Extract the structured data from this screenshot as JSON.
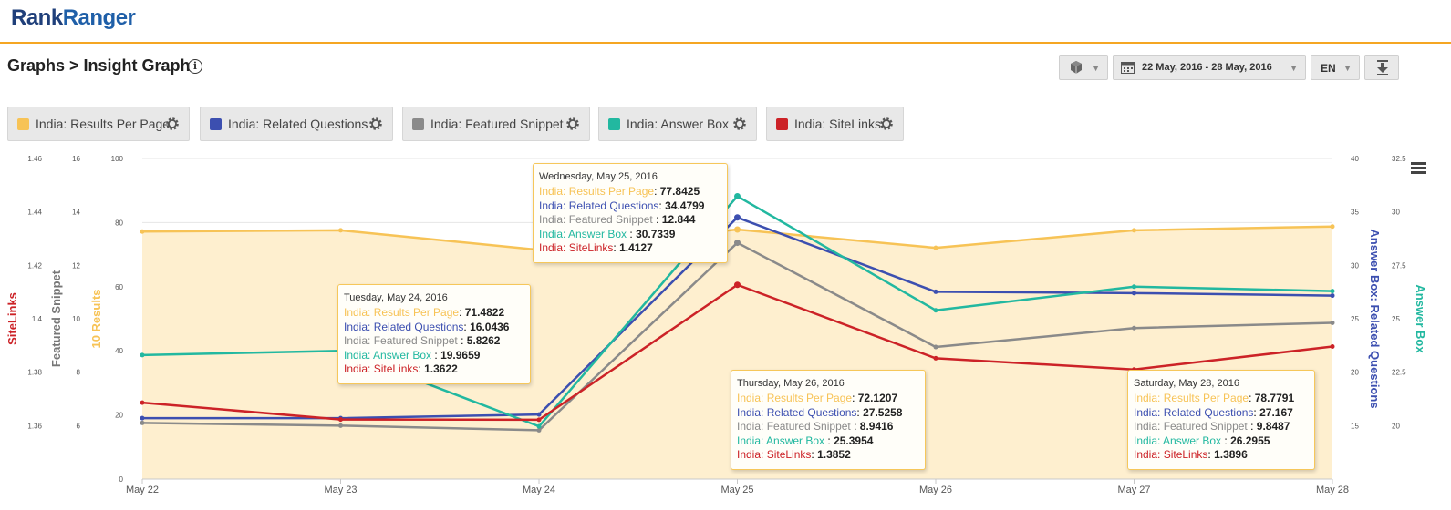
{
  "app": {
    "logo_part1": "Rank",
    "logo_part2": "Ranger"
  },
  "header": {
    "title": "Graphs > Insight Graph",
    "info_icon": "info-icon"
  },
  "toolbar": {
    "view_icon": "cube-icon",
    "date_range": "22 May, 2016 - 28 May, 2016",
    "language": "EN",
    "download_icon": "download-icon"
  },
  "legend": [
    {
      "label": "India: Results Per Page",
      "color": "#f7c356"
    },
    {
      "label": "India: Related Questions",
      "color": "#3c4fb0"
    },
    {
      "label": "India: Featured Snippet",
      "color": "#8a8a8a"
    },
    {
      "label": "India: Answer Box",
      "color": "#22b8a0"
    },
    {
      "label": "India: SiteLinks",
      "color": "#cc2227"
    }
  ],
  "chart_data": {
    "type": "line",
    "categories": [
      "May 22",
      "May 23",
      "May 24",
      "May 25",
      "May 26",
      "May 27",
      "May 28"
    ],
    "series": [
      {
        "name": "India: Results Per Page",
        "color": "#f7c356",
        "axis": "10 Results",
        "area": true,
        "values": [
          77.2,
          77.6,
          71.4822,
          77.8425,
          72.1207,
          77.6,
          78.7791
        ]
      },
      {
        "name": "India: Related Questions",
        "color": "#3c4fb0",
        "axis": "Answer Box: Related Questions",
        "values": [
          15.7,
          15.7,
          16.0436,
          34.4799,
          27.5258,
          27.4,
          27.167
        ]
      },
      {
        "name": "India: Featured Snippet",
        "color": "#8a8a8a",
        "axis": "Featured Snippet",
        "values": [
          6.1,
          6.0,
          5.8262,
          12.844,
          8.9416,
          9.65,
          9.8487
        ]
      },
      {
        "name": "India: Answer Box",
        "color": "#22b8a0",
        "axis": "Answer Box",
        "values": [
          23.3,
          23.5,
          19.9659,
          30.7339,
          25.3954,
          26.5,
          26.2955
        ]
      },
      {
        "name": "India: SiteLinks",
        "color": "#cc2227",
        "axis": "SiteLinks",
        "values": [
          1.3686,
          1.3623,
          1.3622,
          1.4127,
          1.3852,
          1.381,
          1.3896
        ]
      }
    ],
    "axes": [
      {
        "title": "SiteLinks",
        "color": "#cc2227",
        "side": "left",
        "range": [
          1.34,
          1.46
        ],
        "ticks": [
          "1.46",
          "1.44",
          "1.42",
          "1.4",
          "1.38",
          "1.36"
        ]
      },
      {
        "title": "Featured Snippet",
        "color": "#777777",
        "side": "left",
        "range": [
          4,
          16
        ],
        "ticks": [
          "16",
          "14",
          "12",
          "10",
          "8",
          "6"
        ]
      },
      {
        "title": "10 Results",
        "color": "#f7c356",
        "side": "left",
        "range": [
          0,
          100
        ],
        "ticks": [
          "100",
          "80",
          "60",
          "40",
          "20",
          "0"
        ]
      },
      {
        "title": "Answer Box: Related Questions",
        "color": "#3c4fb0",
        "side": "right",
        "range": [
          10,
          40
        ],
        "ticks": [
          "40",
          "35",
          "30",
          "25",
          "20",
          "15"
        ]
      },
      {
        "title": "Answer Box",
        "color": "#22b8a0",
        "side": "right",
        "range": [
          17.5,
          32.5
        ],
        "ticks": [
          "32.5",
          "30",
          "27.5",
          "25",
          "22.5",
          "20"
        ]
      }
    ],
    "grid": true,
    "tooltips": [
      {
        "date": "Tuesday, May 24, 2016",
        "category": "May 24",
        "rows": [
          {
            "label": "India: Results Per Page",
            "value": "71.4822",
            "color": "#f7c356"
          },
          {
            "label": "India: Related Questions",
            "value": "16.0436",
            "color": "#3c4fb0"
          },
          {
            "label": "India: Featured Snippet ",
            "value": "5.8262",
            "color": "#8a8a8a"
          },
          {
            "label": "India: Answer Box ",
            "value": "19.9659",
            "color": "#22b8a0"
          },
          {
            "label": "India: SiteLinks",
            "value": "1.3622",
            "color": "#cc2227"
          }
        ]
      },
      {
        "date": "Wednesday, May 25, 2016",
        "category": "May 25",
        "rows": [
          {
            "label": "India: Results Per Page",
            "value": "77.8425",
            "color": "#f7c356"
          },
          {
            "label": "India: Related Questions",
            "value": "34.4799",
            "color": "#3c4fb0"
          },
          {
            "label": "India: Featured Snippet ",
            "value": "12.844",
            "color": "#8a8a8a"
          },
          {
            "label": "India: Answer Box ",
            "value": "30.7339",
            "color": "#22b8a0"
          },
          {
            "label": "India: SiteLinks",
            "value": "1.4127",
            "color": "#cc2227"
          }
        ]
      },
      {
        "date": "Thursday, May 26, 2016",
        "category": "May 26",
        "rows": [
          {
            "label": "India: Results Per Page",
            "value": "72.1207",
            "color": "#f7c356"
          },
          {
            "label": "India: Related Questions",
            "value": "27.5258",
            "color": "#3c4fb0"
          },
          {
            "label": "India: Featured Snippet ",
            "value": "8.9416",
            "color": "#8a8a8a"
          },
          {
            "label": "India: Answer Box ",
            "value": "25.3954",
            "color": "#22b8a0"
          },
          {
            "label": "India: SiteLinks",
            "value": "1.3852",
            "color": "#cc2227"
          }
        ]
      },
      {
        "date": "Saturday, May 28, 2016",
        "category": "May 28",
        "rows": [
          {
            "label": "India: Results Per Page",
            "value": "78.7791",
            "color": "#f7c356"
          },
          {
            "label": "India: Related Questions",
            "value": "27.167",
            "color": "#3c4fb0"
          },
          {
            "label": "India: Featured Snippet ",
            "value": "9.8487",
            "color": "#8a8a8a"
          },
          {
            "label": "India: Answer Box ",
            "value": "26.2955",
            "color": "#22b8a0"
          },
          {
            "label": "India: SiteLinks",
            "value": "1.3896",
            "color": "#cc2227"
          }
        ]
      }
    ]
  }
}
